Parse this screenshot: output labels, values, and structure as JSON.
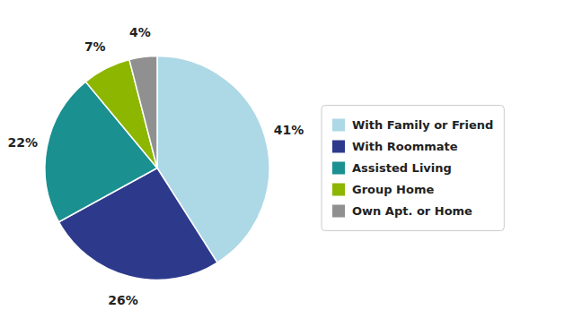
{
  "chart_data": {
    "type": "pie",
    "categories": [
      "With Family or Friend",
      "With Roommate",
      "Assisted Living",
      "Group Home",
      "Own Apt. or Home"
    ],
    "values": [
      41,
      26,
      22,
      7,
      4
    ],
    "value_labels": [
      "41%",
      "26%",
      "22%",
      "7%",
      "4%"
    ],
    "colors": [
      "#add8e6",
      "#2d3a8c",
      "#1a9090",
      "#8db600",
      "#909090"
    ],
    "data_labels": true,
    "legend": "right"
  }
}
